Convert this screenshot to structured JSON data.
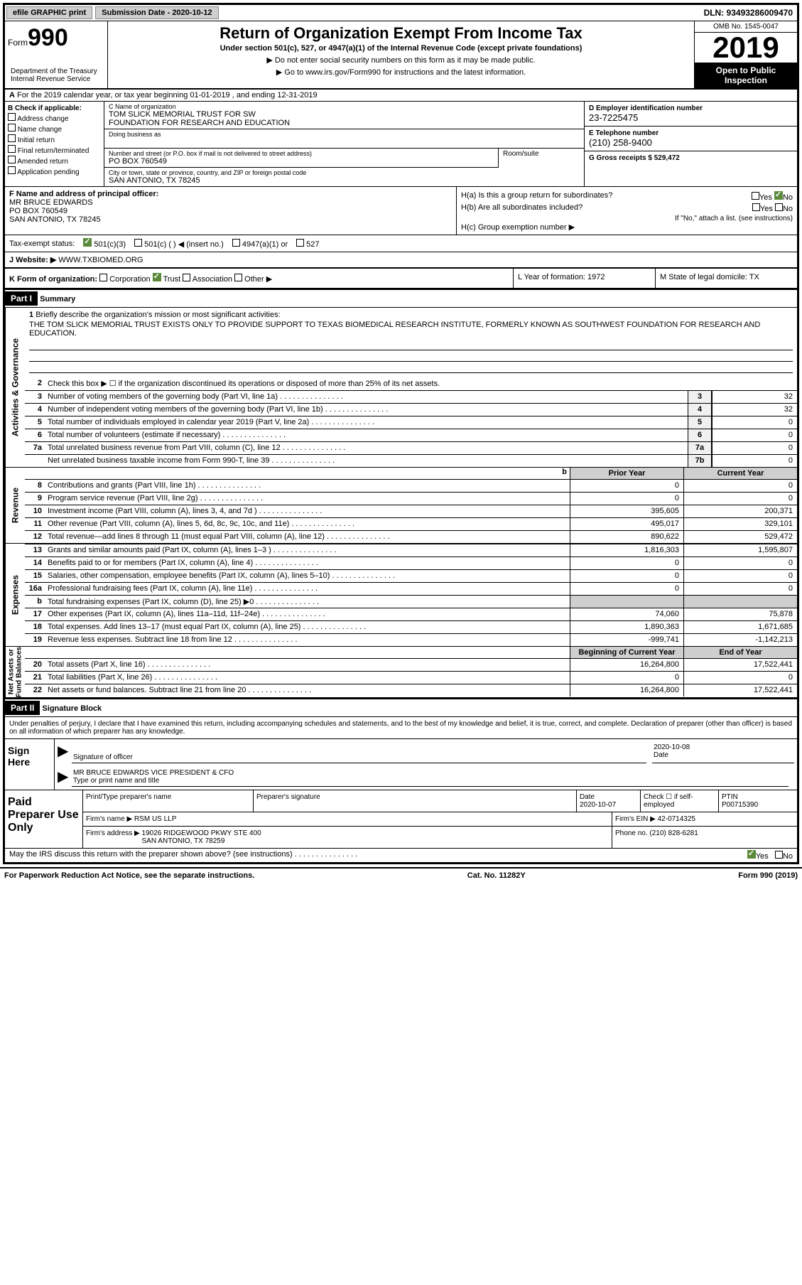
{
  "topbar": {
    "efile_label": "efile GRAPHIC print",
    "submission_label": "Submission Date - 2020-10-12",
    "dln": "DLN: 93493286009470"
  },
  "header": {
    "form_prefix": "Form",
    "form_number": "990",
    "title": "Return of Organization Exempt From Income Tax",
    "subtitle": "Under section 501(c), 527, or 4947(a)(1) of the Internal Revenue Code (except private foundations)",
    "warn": "▶ Do not enter social security numbers on this form as it may be made public.",
    "goto": "▶ Go to www.irs.gov/Form990 for instructions and the latest information.",
    "dept": "Department of the Treasury\nInternal Revenue Service",
    "omb": "OMB No. 1545-0047",
    "year": "2019",
    "open": "Open to Public Inspection"
  },
  "rowA": "For the 2019 calendar year, or tax year beginning 01-01-2019    , and ending 12-31-2019",
  "sectionB": {
    "title": "B Check if applicable:",
    "items": [
      "Address change",
      "Name change",
      "Initial return",
      "Final return/terminated",
      "Amended return",
      "Application pending"
    ]
  },
  "sectionC": {
    "name_label": "C Name of organization",
    "name": "TOM SLICK MEMORIAL TRUST FOR SW\nFOUNDATION FOR RESEARCH AND EDUCATION",
    "dba_label": "Doing business as",
    "addr_label": "Number and street (or P.O. box if mail is not delivered to street address)",
    "room_label": "Room/suite",
    "addr": "PO BOX 760549",
    "city_label": "City or town, state or province, country, and ZIP or foreign postal code",
    "city": "SAN ANTONIO, TX  78245"
  },
  "sectionD": {
    "ein_label": "D Employer identification number",
    "ein": "23-7225475",
    "phone_label": "E Telephone number",
    "phone": "(210) 258-9400",
    "gross_label": "G Gross receipts $ 529,472"
  },
  "sectionF": {
    "label": "F  Name and address of principal officer:",
    "name": "MR BRUCE EDWARDS",
    "addr1": "PO BOX 760549",
    "addr2": "SAN ANTONIO, TX  78245"
  },
  "sectionH": {
    "a": "H(a)  Is this a group return for subordinates?",
    "b": "H(b)  Are all subordinates included?",
    "bnote": "If \"No,\" attach a list. (see instructions)",
    "c": "H(c)  Group exemption number ▶"
  },
  "taxStatus": {
    "label": "Tax-exempt status:",
    "opts": [
      "501(c)(3)",
      "501(c) (  ) ◀ (insert no.)",
      "4947(a)(1) or",
      "527"
    ]
  },
  "sectionJ": {
    "label": "J   Website: ▶",
    "val": "WWW.TXBIOMED.ORG"
  },
  "sectionK": {
    "label": "K Form of organization:",
    "opts": [
      "Corporation",
      "Trust",
      "Association",
      "Other ▶"
    ],
    "L": "L Year of formation: 1972",
    "M": "M State of legal domicile: TX"
  },
  "part1": {
    "header": "Part I",
    "title": "Summary",
    "line1_label": "Briefly describe the organization's mission or most significant activities:",
    "mission": "THE TOM SLICK MEMORIAL TRUST EXISTS ONLY TO PROVIDE SUPPORT TO TEXAS BIOMEDICAL RESEARCH INSTITUTE, FORMERLY KNOWN AS SOUTHWEST FOUNDATION FOR RESEARCH AND EDUCATION.",
    "line2": "Check this box ▶ ☐  if the organization discontinued its operations or disposed of more than 25% of its net assets."
  },
  "governance": [
    {
      "n": "3",
      "d": "Number of voting members of the governing body (Part VI, line 1a)",
      "b": "3",
      "v": "32"
    },
    {
      "n": "4",
      "d": "Number of independent voting members of the governing body (Part VI, line 1b)",
      "b": "4",
      "v": "32"
    },
    {
      "n": "5",
      "d": "Total number of individuals employed in calendar year 2019 (Part V, line 2a)",
      "b": "5",
      "v": "0"
    },
    {
      "n": "6",
      "d": "Total number of volunteers (estimate if necessary)",
      "b": "6",
      "v": "0"
    },
    {
      "n": "7a",
      "d": "Total unrelated business revenue from Part VIII, column (C), line 12",
      "b": "7a",
      "v": "0"
    },
    {
      "n": "",
      "d": "Net unrelated business taxable income from Form 990-T, line 39",
      "b": "7b",
      "v": "0"
    }
  ],
  "colHeaders": {
    "prior": "Prior Year",
    "current": "Current Year",
    "begin": "Beginning of Current Year",
    "end": "End of Year"
  },
  "revenue": [
    {
      "n": "8",
      "d": "Contributions and grants (Part VIII, line 1h)",
      "p": "0",
      "c": "0"
    },
    {
      "n": "9",
      "d": "Program service revenue (Part VIII, line 2g)",
      "p": "0",
      "c": "0"
    },
    {
      "n": "10",
      "d": "Investment income (Part VIII, column (A), lines 3, 4, and 7d )",
      "p": "395,605",
      "c": "200,371"
    },
    {
      "n": "11",
      "d": "Other revenue (Part VIII, column (A), lines 5, 6d, 8c, 9c, 10c, and 11e)",
      "p": "495,017",
      "c": "329,101"
    },
    {
      "n": "12",
      "d": "Total revenue—add lines 8 through 11 (must equal Part VIII, column (A), line 12)",
      "p": "890,622",
      "c": "529,472"
    }
  ],
  "expenses": [
    {
      "n": "13",
      "d": "Grants and similar amounts paid (Part IX, column (A), lines 1–3 )",
      "p": "1,816,303",
      "c": "1,595,807"
    },
    {
      "n": "14",
      "d": "Benefits paid to or for members (Part IX, column (A), line 4)",
      "p": "0",
      "c": "0"
    },
    {
      "n": "15",
      "d": "Salaries, other compensation, employee benefits (Part IX, column (A), lines 5–10)",
      "p": "0",
      "c": "0"
    },
    {
      "n": "16a",
      "d": "Professional fundraising fees (Part IX, column (A), line 11e)",
      "p": "0",
      "c": "0"
    },
    {
      "n": "b",
      "d": "Total fundraising expenses (Part IX, column (D), line 25) ▶0",
      "p": "",
      "c": "",
      "grey": true
    },
    {
      "n": "17",
      "d": "Other expenses (Part IX, column (A), lines 11a–11d, 11f–24e)",
      "p": "74,060",
      "c": "75,878"
    },
    {
      "n": "18",
      "d": "Total expenses. Add lines 13–17 (must equal Part IX, column (A), line 25)",
      "p": "1,890,363",
      "c": "1,671,685"
    },
    {
      "n": "19",
      "d": "Revenue less expenses. Subtract line 18 from line 12",
      "p": "-999,741",
      "c": "-1,142,213"
    }
  ],
  "netassets": [
    {
      "n": "20",
      "d": "Total assets (Part X, line 16)",
      "p": "16,264,800",
      "c": "17,522,441"
    },
    {
      "n": "21",
      "d": "Total liabilities (Part X, line 26)",
      "p": "0",
      "c": "0"
    },
    {
      "n": "22",
      "d": "Net assets or fund balances. Subtract line 21 from line 20",
      "p": "16,264,800",
      "c": "17,522,441"
    }
  ],
  "vtabs": {
    "gov": "Activities & Governance",
    "rev": "Revenue",
    "exp": "Expenses",
    "net": "Net Assets or\nFund Balances"
  },
  "part2": {
    "header": "Part II",
    "title": "Signature Block",
    "declaration": "Under penalties of perjury, I declare that I have examined this return, including accompanying schedules and statements, and to the best of my knowledge and belief, it is true, correct, and complete. Declaration of preparer (other than officer) is based on all information of which preparer has any knowledge."
  },
  "sign": {
    "left": "Sign Here",
    "sig_label": "Signature of officer",
    "date": "2020-10-08",
    "date_label": "Date",
    "name": "MR BRUCE EDWARDS  VICE PRESIDENT & CFO",
    "name_label": "Type or print name and title"
  },
  "paid": {
    "left": "Paid Preparer Use Only",
    "h1": "Print/Type preparer's name",
    "h2": "Preparer's signature",
    "h3": "Date",
    "h3v": "2020-10-07",
    "h4": "Check ☐ if self-employed",
    "h5": "PTIN",
    "h5v": "P00715390",
    "firm_label": "Firm's name    ▶",
    "firm": "RSM US LLP",
    "ein_label": "Firm's EIN ▶",
    "ein": "42-0714325",
    "addr_label": "Firm's address ▶",
    "addr": "19026 RIDGEWOOD PKWY STE 400\nSAN ANTONIO, TX  78259",
    "phone_label": "Phone no.",
    "phone": "(210) 828-6281"
  },
  "footer": {
    "discuss": "May the IRS discuss this return with the preparer shown above? (see instructions)",
    "yes": "Yes",
    "no": "No",
    "pra": "For Paperwork Reduction Act Notice, see the separate instructions.",
    "cat": "Cat. No. 11282Y",
    "form": "Form 990 (2019)"
  }
}
